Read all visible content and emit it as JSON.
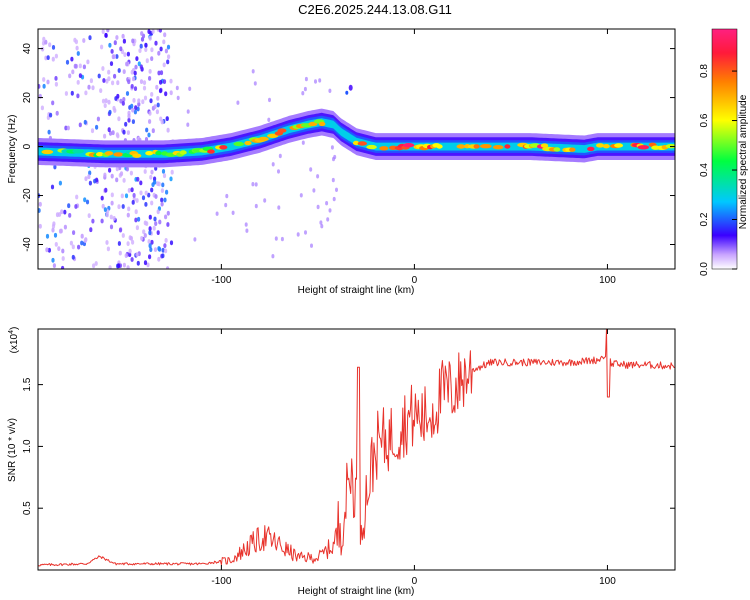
{
  "title": "C2E6.2025.244.13.08.G11",
  "colorbar": {
    "label": "Normalized spectral amplitude",
    "ticks": [
      "0.0",
      "0.2",
      "0.4",
      "0.6",
      "0.8"
    ]
  },
  "chart_data": [
    {
      "type": "heatmap",
      "title": "C2E6.2025.244.13.08.G11",
      "xlabel": "Height of straight line (km)",
      "ylabel": "Frequency (Hz)",
      "xlim": [
        -195,
        135
      ],
      "ylim": [
        -50,
        48
      ],
      "x_ticks": [
        -100,
        0,
        100
      ],
      "y_ticks": [
        -40,
        -20,
        0,
        20,
        40
      ],
      "colorbar_range": [
        0.0,
        0.97
      ],
      "ridge": {
        "x": [
          -195,
          -160,
          -130,
          -110,
          -95,
          -80,
          -65,
          -55,
          -48,
          -42,
          -38,
          -30,
          -20,
          -10,
          0,
          20,
          60,
          88,
          95,
          135
        ],
        "y": [
          -2,
          -3,
          -3,
          -2,
          0,
          3,
          7,
          9,
          10,
          9,
          6,
          2,
          0,
          0,
          0,
          0,
          0,
          -1,
          0,
          0
        ]
      },
      "scatter_region": {
        "x": [
          -195,
          -125
        ],
        "y": [
          -50,
          48
        ]
      }
    },
    {
      "type": "line",
      "xlabel": "Height of straight line (km)",
      "ylabel": "SNR (10 * v/v)",
      "y_scale_label": "(x10",
      "y_scale_exp": "4",
      "xlim": [
        -195,
        135
      ],
      "ylim": [
        0.0,
        1.95
      ],
      "x_ticks": [
        -100,
        0,
        100
      ],
      "y_ticks": [
        0.5,
        1.0,
        1.5
      ],
      "series": [
        {
          "name": "SNR",
          "color": "#e8332c",
          "x": [
            -195,
            -170,
            -163,
            -155,
            -130,
            -110,
            -95,
            -85,
            -78,
            -70,
            -60,
            -50,
            -42,
            -36,
            -33,
            -30,
            -28,
            -25,
            -20,
            -15,
            -10,
            -5,
            0,
            5,
            10,
            15,
            20,
            25,
            30,
            40,
            60,
            80,
            95,
            100,
            102,
            110,
            120,
            135
          ],
          "y": [
            0.04,
            0.05,
            0.11,
            0.05,
            0.05,
            0.05,
            0.08,
            0.2,
            0.27,
            0.2,
            0.1,
            0.1,
            0.2,
            0.5,
            0.8,
            0.6,
            0.4,
            0.6,
            1.0,
            1.05,
            1.1,
            1.2,
            1.25,
            1.22,
            1.3,
            1.45,
            1.45,
            1.55,
            1.62,
            1.68,
            1.68,
            1.68,
            1.7,
            1.75,
            1.67,
            1.66,
            1.66,
            1.65
          ]
        }
      ]
    }
  ]
}
